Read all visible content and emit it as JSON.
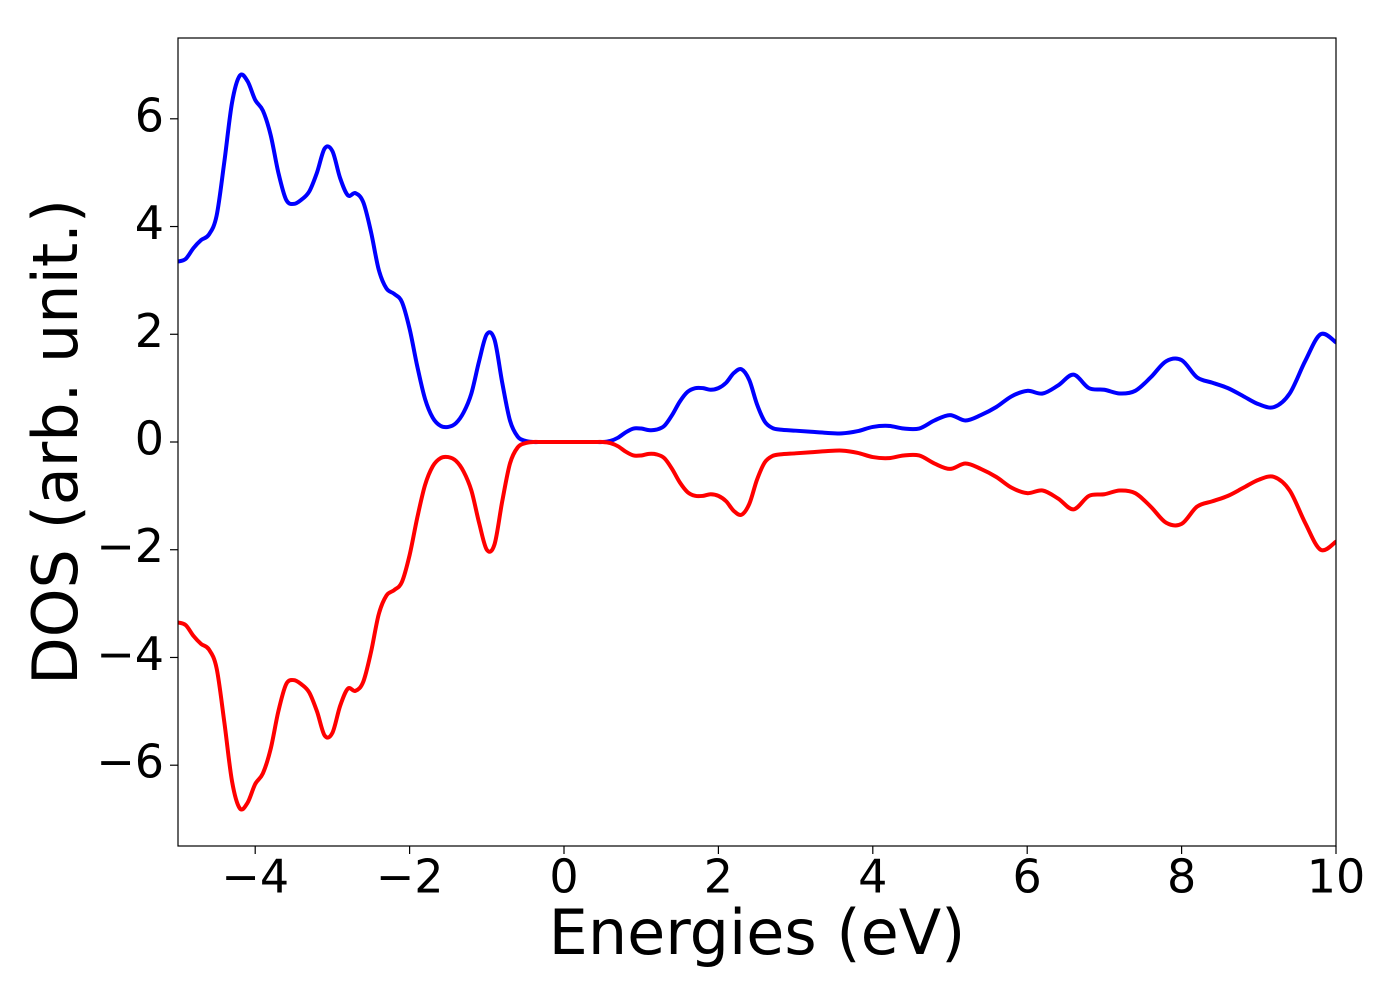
{
  "chart_data": {
    "type": "line",
    "xlabel": "Energies (eV)",
    "ylabel": "DOS (arb. unit.)",
    "xlim": [
      -5,
      10
    ],
    "ylim": [
      -7.5,
      7.5
    ],
    "xticks": [
      {
        "value": -4,
        "label": "−4"
      },
      {
        "value": -2,
        "label": "−2"
      },
      0,
      2,
      4,
      6,
      8,
      10
    ],
    "yticks": [
      {
        "value": -6,
        "label": "−6"
      },
      {
        "value": -4,
        "label": "−4"
      },
      {
        "value": -2,
        "label": "−2"
      },
      0,
      2,
      4,
      6
    ],
    "grid": false,
    "x": [
      -5.0,
      -4.9,
      -4.8,
      -4.7,
      -4.6,
      -4.5,
      -4.4,
      -4.3,
      -4.2,
      -4.1,
      -4.0,
      -3.9,
      -3.8,
      -3.7,
      -3.6,
      -3.5,
      -3.4,
      -3.3,
      -3.2,
      -3.1,
      -3.0,
      -2.9,
      -2.8,
      -2.7,
      -2.6,
      -2.5,
      -2.4,
      -2.3,
      -2.2,
      -2.1,
      -2.0,
      -1.9,
      -1.8,
      -1.7,
      -1.6,
      -1.5,
      -1.4,
      -1.3,
      -1.2,
      -1.1,
      -1.0,
      -0.9,
      -0.8,
      -0.7,
      -0.6,
      -0.5,
      -0.4,
      -0.3,
      -0.2,
      -0.1,
      0.0,
      0.1,
      0.2,
      0.3,
      0.4,
      0.5,
      0.6,
      0.7,
      0.8,
      0.9,
      1.0,
      1.1,
      1.2,
      1.3,
      1.4,
      1.5,
      1.6,
      1.7,
      1.8,
      1.9,
      2.0,
      2.1,
      2.2,
      2.3,
      2.4,
      2.5,
      2.6,
      2.7,
      2.8,
      3.0,
      3.2,
      3.4,
      3.6,
      3.8,
      4.0,
      4.2,
      4.4,
      4.6,
      4.8,
      5.0,
      5.2,
      5.4,
      5.6,
      5.8,
      6.0,
      6.2,
      6.4,
      6.6,
      6.8,
      7.0,
      7.2,
      7.4,
      7.6,
      7.8,
      8.0,
      8.2,
      8.4,
      8.6,
      8.8,
      9.0,
      9.2,
      9.4,
      9.6,
      9.8,
      10.0
    ],
    "series": [
      {
        "color": "#0000ff",
        "values": [
          3.35,
          3.4,
          3.6,
          3.75,
          3.85,
          4.2,
          5.2,
          6.3,
          6.8,
          6.7,
          6.35,
          6.15,
          5.7,
          5.0,
          4.5,
          4.42,
          4.5,
          4.65,
          5.0,
          5.45,
          5.4,
          4.9,
          4.58,
          4.62,
          4.45,
          3.9,
          3.2,
          2.85,
          2.75,
          2.6,
          2.1,
          1.4,
          0.8,
          0.45,
          0.3,
          0.28,
          0.35,
          0.55,
          0.9,
          1.5,
          2.0,
          1.9,
          1.1,
          0.4,
          0.1,
          0.02,
          0,
          0,
          0,
          0,
          0,
          0,
          0,
          0,
          0,
          0,
          0.02,
          0.08,
          0.18,
          0.25,
          0.25,
          0.22,
          0.23,
          0.3,
          0.5,
          0.75,
          0.93,
          1.0,
          1.0,
          0.97,
          1.0,
          1.1,
          1.28,
          1.35,
          1.15,
          0.7,
          0.38,
          0.26,
          0.23,
          0.21,
          0.19,
          0.17,
          0.16,
          0.2,
          0.28,
          0.3,
          0.25,
          0.25,
          0.4,
          0.5,
          0.4,
          0.5,
          0.65,
          0.85,
          0.95,
          0.9,
          1.05,
          1.25,
          1.0,
          0.97,
          0.9,
          0.95,
          1.2,
          1.5,
          1.52,
          1.2,
          1.1,
          1.0,
          0.85,
          0.7,
          0.65,
          0.9,
          1.5,
          2.0,
          1.85
        ]
      },
      {
        "color": "#ff0000",
        "values": [
          -3.35,
          -3.4,
          -3.6,
          -3.75,
          -3.85,
          -4.2,
          -5.2,
          -6.3,
          -6.8,
          -6.7,
          -6.35,
          -6.15,
          -5.7,
          -5.0,
          -4.5,
          -4.42,
          -4.5,
          -4.65,
          -5.0,
          -5.45,
          -5.4,
          -4.9,
          -4.58,
          -4.62,
          -4.45,
          -3.9,
          -3.2,
          -2.85,
          -2.75,
          -2.6,
          -2.1,
          -1.4,
          -0.8,
          -0.45,
          -0.3,
          -0.28,
          -0.35,
          -0.55,
          -0.9,
          -1.5,
          -2.0,
          -1.9,
          -1.1,
          -0.4,
          -0.1,
          -0.02,
          0,
          0,
          0,
          0,
          0,
          0,
          0,
          0,
          0,
          0,
          -0.02,
          -0.08,
          -0.18,
          -0.25,
          -0.25,
          -0.22,
          -0.23,
          -0.3,
          -0.5,
          -0.75,
          -0.93,
          -1.0,
          -1.0,
          -0.97,
          -1.0,
          -1.1,
          -1.28,
          -1.35,
          -1.15,
          -0.7,
          -0.38,
          -0.26,
          -0.23,
          -0.21,
          -0.19,
          -0.17,
          -0.16,
          -0.2,
          -0.28,
          -0.3,
          -0.25,
          -0.25,
          -0.4,
          -0.5,
          -0.4,
          -0.5,
          -0.65,
          -0.85,
          -0.95,
          -0.9,
          -1.05,
          -1.25,
          -1.0,
          -0.97,
          -0.9,
          -0.95,
          -1.2,
          -1.5,
          -1.52,
          -1.2,
          -1.1,
          -1.0,
          -0.85,
          -0.7,
          -0.65,
          -0.9,
          -1.5,
          -2.0,
          -1.85
        ]
      }
    ]
  }
}
